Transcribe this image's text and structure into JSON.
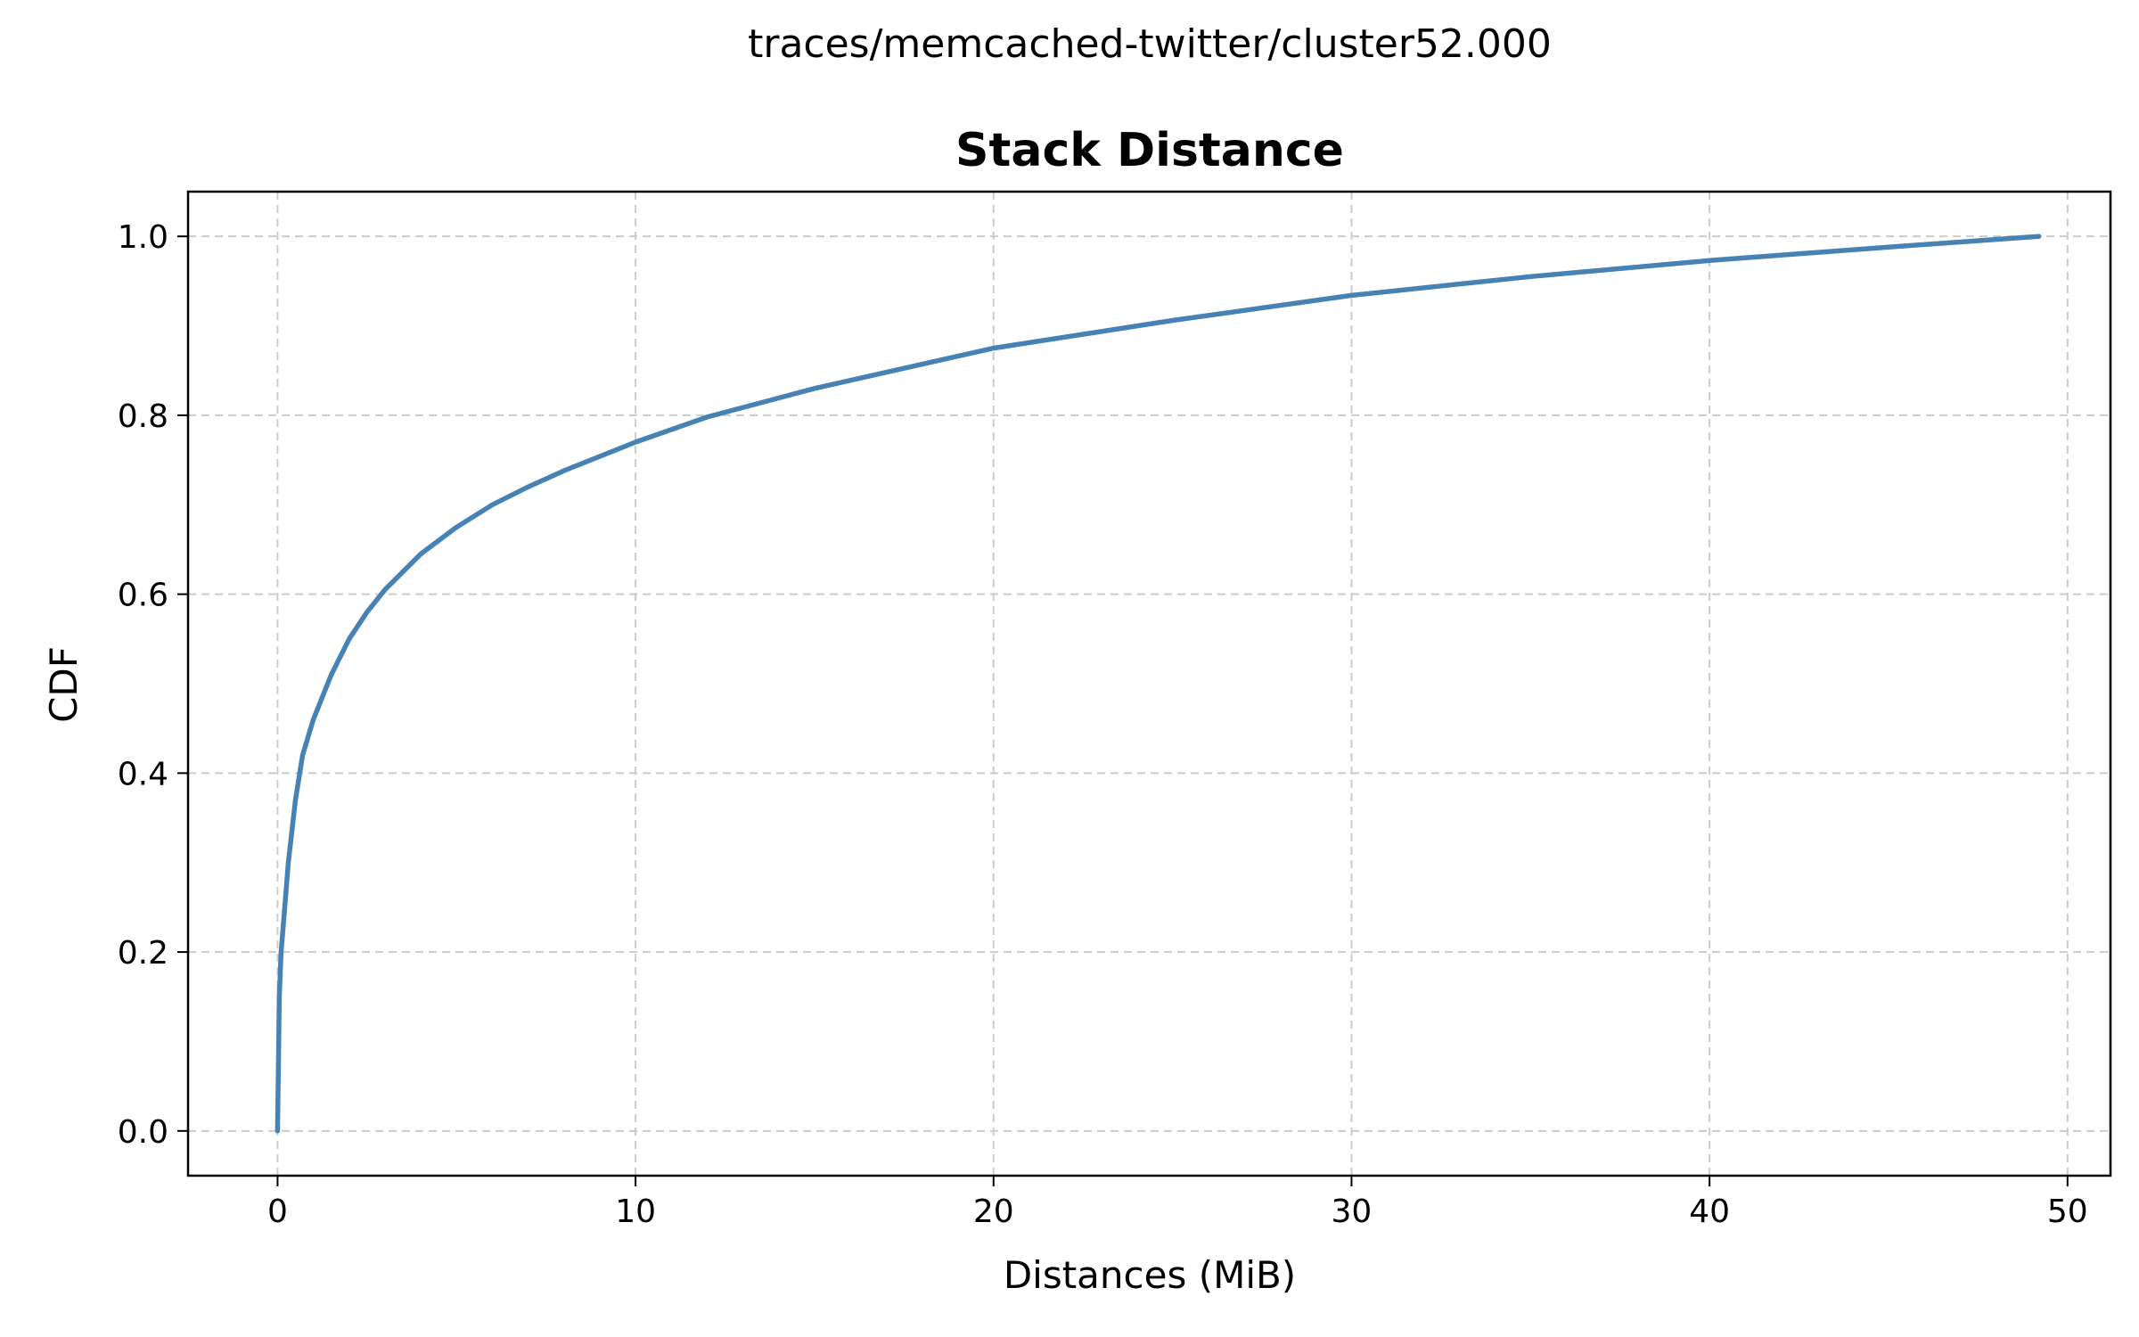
{
  "figure": {
    "suptitle": "traces/memcached-twitter/cluster52.000"
  },
  "chart_data": {
    "type": "line",
    "title": "Stack Distance",
    "xlabel": "Distances (MiB)",
    "ylabel": "CDF",
    "xlim": [
      -2.5,
      51.2
    ],
    "ylim": [
      -0.05,
      1.05
    ],
    "xticks": [
      0,
      10,
      20,
      30,
      40,
      50
    ],
    "xtick_labels": [
      "0",
      "10",
      "20",
      "30",
      "40",
      "50"
    ],
    "yticks": [
      0.0,
      0.2,
      0.4,
      0.6,
      0.8,
      1.0
    ],
    "ytick_labels": [
      "0.0",
      "0.2",
      "0.4",
      "0.6",
      "0.8",
      "1.0"
    ],
    "grid": true,
    "series": [
      {
        "color": "#4682b4",
        "x": [
          0,
          0.05,
          0.1,
          0.2,
          0.3,
          0.5,
          0.7,
          1.0,
          1.5,
          2.0,
          2.5,
          3.0,
          4.0,
          5.0,
          6.0,
          7.0,
          8.0,
          10.0,
          12.0,
          15.0,
          20.0,
          25.0,
          30.0,
          35.0,
          40.0,
          45.0,
          49.2
        ],
        "y": [
          0.0,
          0.15,
          0.2,
          0.25,
          0.3,
          0.37,
          0.42,
          0.46,
          0.51,
          0.55,
          0.58,
          0.605,
          0.645,
          0.675,
          0.7,
          0.72,
          0.738,
          0.77,
          0.798,
          0.83,
          0.875,
          0.906,
          0.934,
          0.955,
          0.973,
          0.988,
          1.0
        ]
      }
    ]
  }
}
